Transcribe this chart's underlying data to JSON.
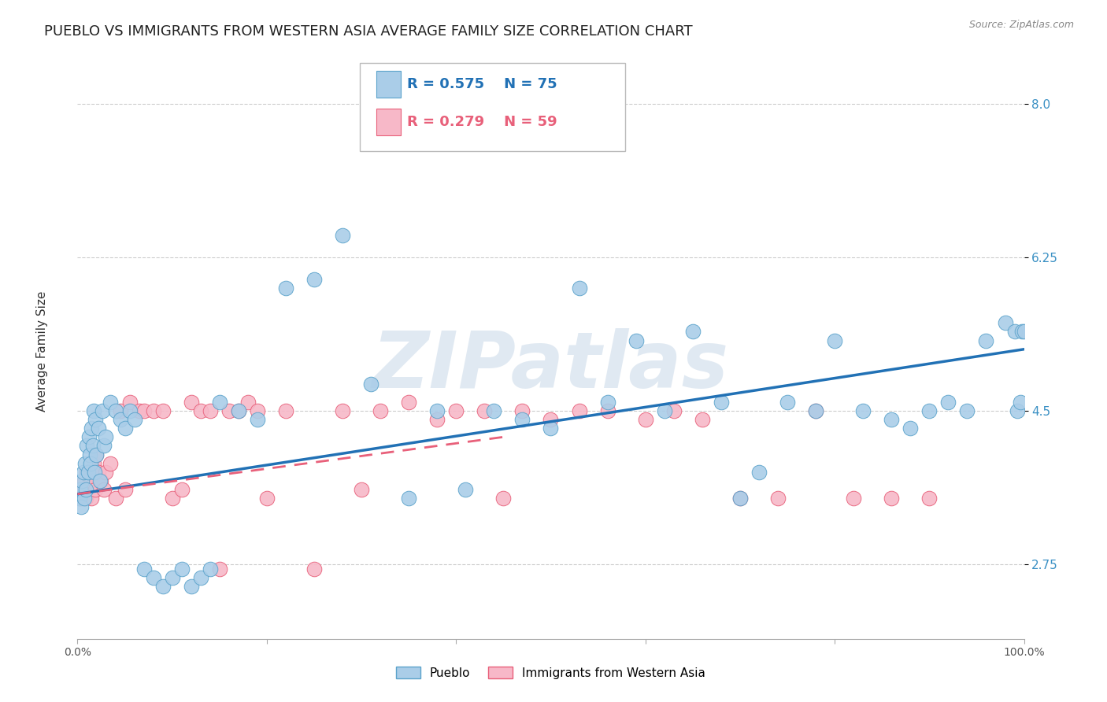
{
  "title": "PUEBLO VS IMMIGRANTS FROM WESTERN ASIA AVERAGE FAMILY SIZE CORRELATION CHART",
  "source": "Source: ZipAtlas.com",
  "ylabel": "Average Family Size",
  "yticks": [
    2.75,
    4.5,
    6.25,
    8.0
  ],
  "xmin": 0.0,
  "xmax": 100.0,
  "ymin": 1.9,
  "ymax": 8.5,
  "series_blue": {
    "label": "Pueblo",
    "R": "0.575",
    "N": "75",
    "color": "#aacde8",
    "edge_color": "#5ba3cb",
    "x": [
      0.2,
      0.3,
      0.4,
      0.5,
      0.6,
      0.7,
      0.8,
      0.9,
      1.0,
      1.1,
      1.2,
      1.3,
      1.4,
      1.5,
      1.6,
      1.7,
      1.8,
      1.9,
      2.0,
      2.2,
      2.4,
      2.6,
      2.8,
      3.0,
      3.5,
      4.0,
      4.5,
      5.0,
      5.5,
      6.0,
      7.0,
      8.0,
      9.0,
      10.0,
      11.0,
      12.0,
      13.0,
      14.0,
      15.0,
      17.0,
      19.0,
      22.0,
      25.0,
      28.0,
      31.0,
      35.0,
      38.0,
      41.0,
      44.0,
      47.0,
      50.0,
      53.0,
      56.0,
      59.0,
      62.0,
      65.0,
      68.0,
      70.0,
      72.0,
      75.0,
      78.0,
      80.0,
      83.0,
      86.0,
      88.0,
      90.0,
      92.0,
      94.0,
      96.0,
      98.0,
      99.0,
      99.3,
      99.6,
      99.8,
      100.0
    ],
    "y": [
      3.5,
      3.6,
      3.4,
      3.7,
      3.8,
      3.5,
      3.9,
      3.6,
      4.1,
      3.8,
      4.2,
      4.0,
      3.9,
      4.3,
      4.1,
      4.5,
      3.8,
      4.4,
      4.0,
      4.3,
      3.7,
      4.5,
      4.1,
      4.2,
      4.6,
      4.5,
      4.4,
      4.3,
      4.5,
      4.4,
      2.7,
      2.6,
      2.5,
      2.6,
      2.7,
      2.5,
      2.6,
      2.7,
      4.6,
      4.5,
      4.4,
      5.9,
      6.0,
      6.5,
      4.8,
      3.5,
      4.5,
      3.6,
      4.5,
      4.4,
      4.3,
      5.9,
      4.6,
      5.3,
      4.5,
      5.4,
      4.6,
      3.5,
      3.8,
      4.6,
      4.5,
      5.3,
      4.5,
      4.4,
      4.3,
      4.5,
      4.6,
      4.5,
      5.3,
      5.5,
      5.4,
      4.5,
      4.6,
      5.4,
      5.4
    ]
  },
  "series_pink": {
    "label": "Immigrants from Western Asia",
    "R": "0.279",
    "N": "59",
    "color": "#f7b8c8",
    "edge_color": "#e8607a",
    "x": [
      0.2,
      0.3,
      0.5,
      0.7,
      0.9,
      1.0,
      1.2,
      1.4,
      1.5,
      1.7,
      1.9,
      2.0,
      2.2,
      2.5,
      2.8,
      3.0,
      3.5,
      4.0,
      4.5,
      5.0,
      5.5,
      6.5,
      7.0,
      8.0,
      9.0,
      10.0,
      11.0,
      12.0,
      13.0,
      14.0,
      15.0,
      16.0,
      17.0,
      18.0,
      19.0,
      20.0,
      22.0,
      25.0,
      28.0,
      30.0,
      32.0,
      35.0,
      38.0,
      40.0,
      43.0,
      45.0,
      47.0,
      50.0,
      53.0,
      56.0,
      60.0,
      63.0,
      66.0,
      70.0,
      74.0,
      78.0,
      82.0,
      86.0,
      90.0
    ],
    "y": [
      3.5,
      3.6,
      3.5,
      3.7,
      3.5,
      3.8,
      3.6,
      3.7,
      3.5,
      3.9,
      3.6,
      4.0,
      3.8,
      3.7,
      3.6,
      3.8,
      3.9,
      3.5,
      4.5,
      3.6,
      4.6,
      4.5,
      4.5,
      4.5,
      4.5,
      3.5,
      3.6,
      4.6,
      4.5,
      4.5,
      2.7,
      4.5,
      4.5,
      4.6,
      4.5,
      3.5,
      4.5,
      2.7,
      4.5,
      3.6,
      4.5,
      4.6,
      4.4,
      4.5,
      4.5,
      3.5,
      4.5,
      4.4,
      4.5,
      4.5,
      4.4,
      4.5,
      4.4,
      3.5,
      3.5,
      4.5,
      3.5,
      3.5,
      3.5
    ]
  },
  "blue_trend_x": [
    0.0,
    100.0
  ],
  "blue_trend_y": [
    3.55,
    5.2
  ],
  "pink_trend_x": [
    0.0,
    45.0
  ],
  "pink_trend_y": [
    3.55,
    4.2
  ],
  "watermark": "ZIPatlas",
  "bg_color": "#ffffff",
  "grid_color": "#cccccc",
  "title_fontsize": 13,
  "axis_label_fontsize": 10,
  "tick_fontsize": 10,
  "legend_fontsize": 13
}
